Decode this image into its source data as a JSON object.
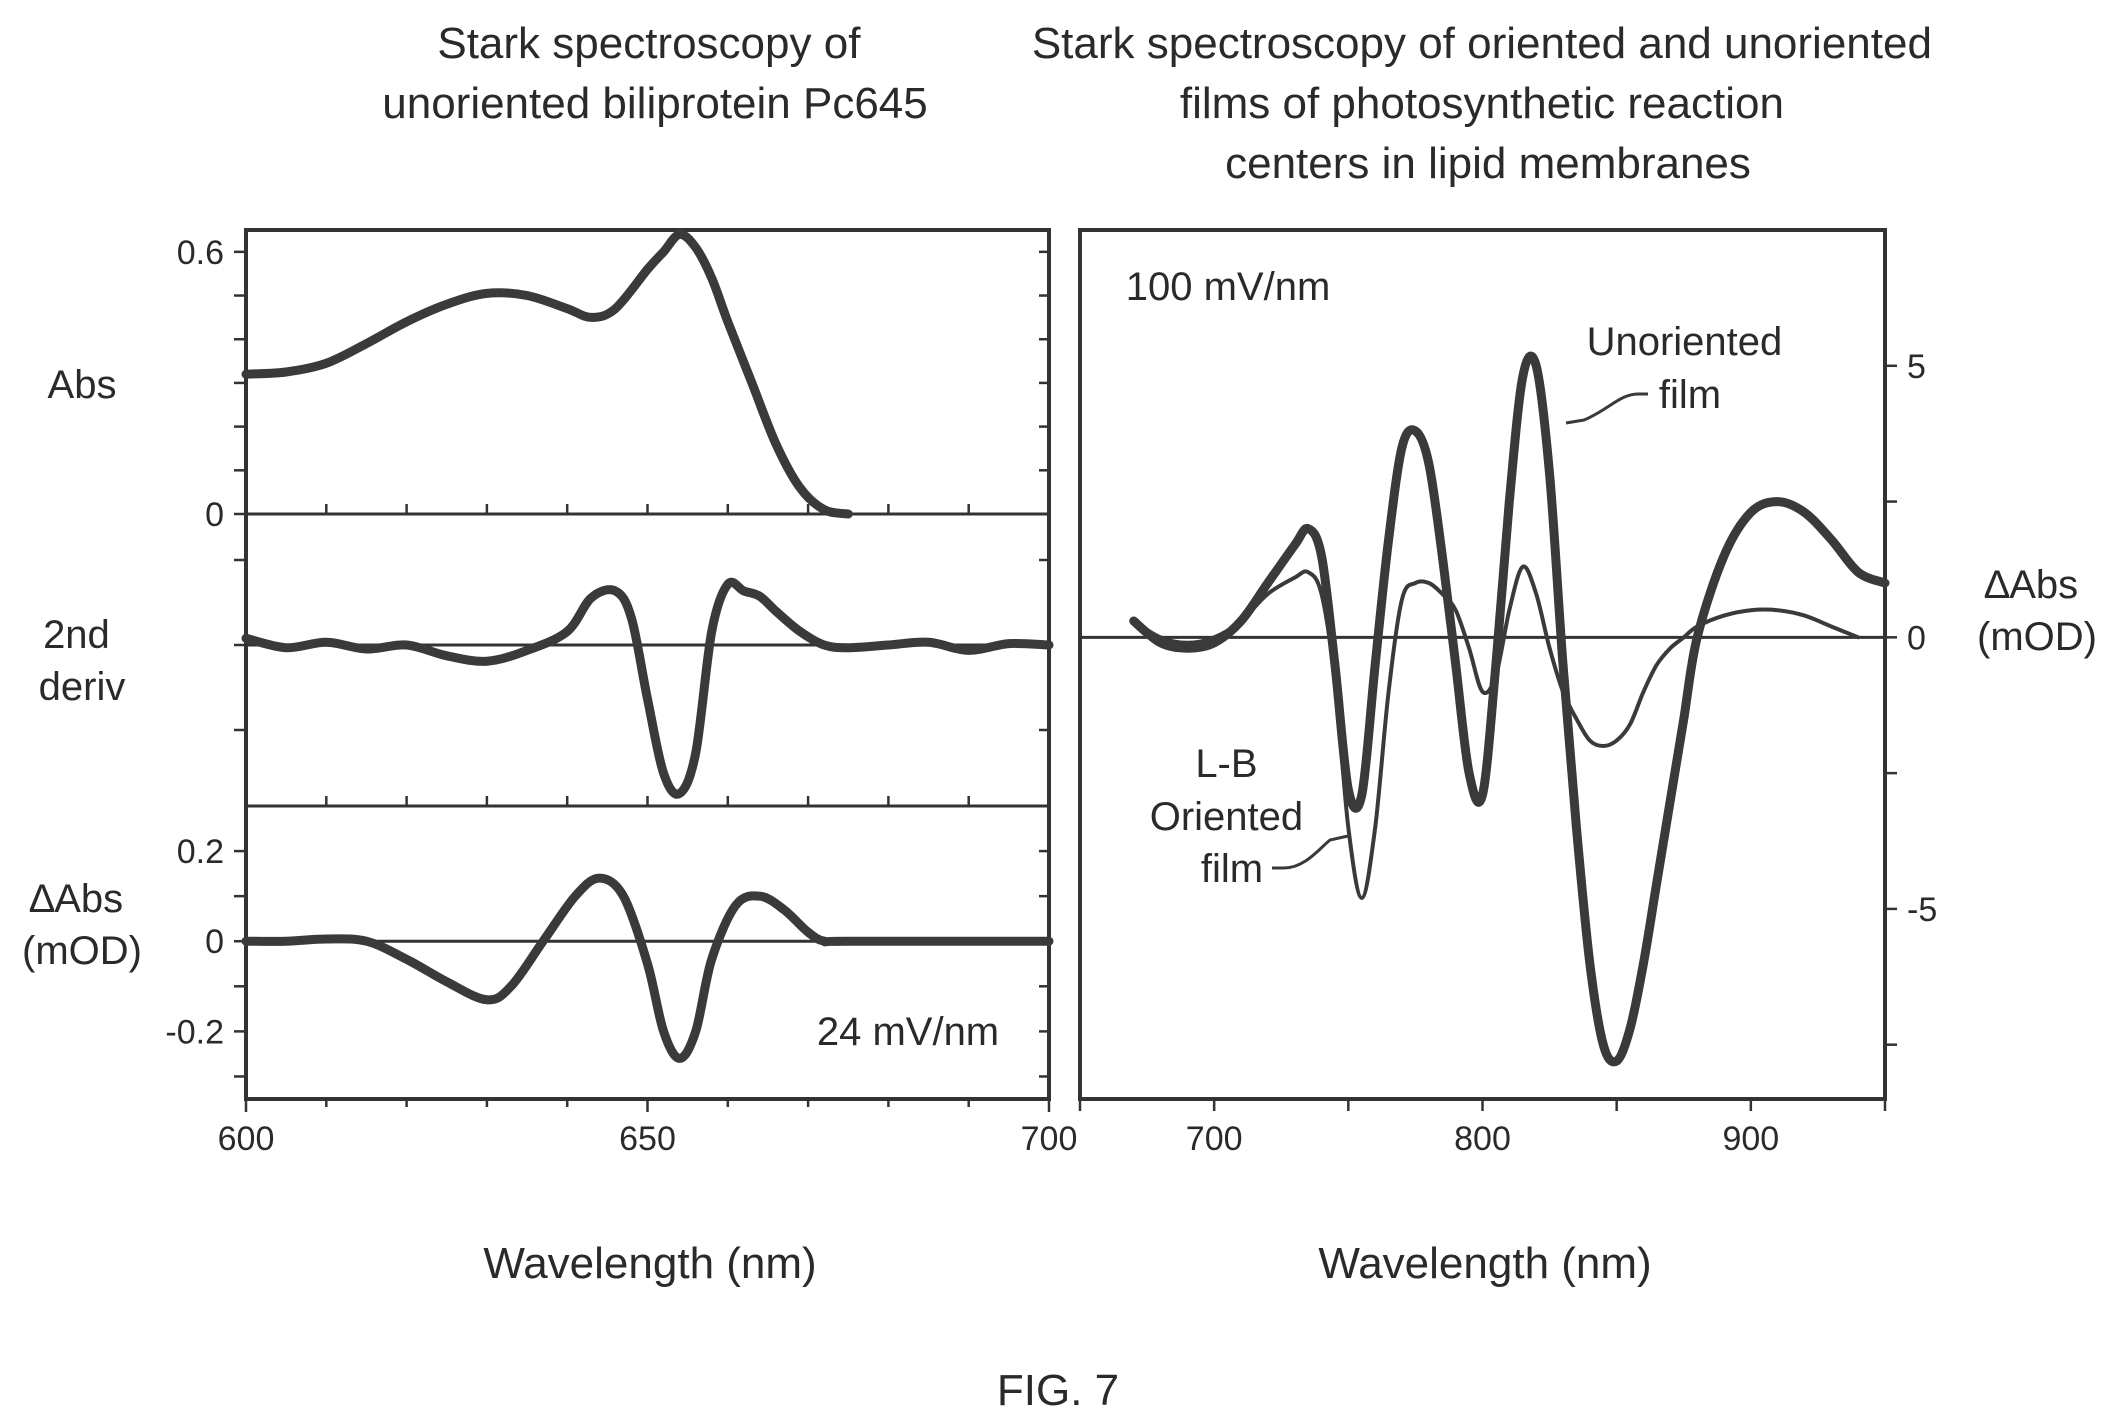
{
  "figure_label": "FIG. 7",
  "chart_data": [
    {
      "type": "line",
      "title": "Stark spectroscopy of unoriented biliprotein Pc645",
      "xlabel": "Wavelength (nm)",
      "xlim": [
        600,
        700
      ],
      "x_ticks": [
        "600",
        "650",
        "700"
      ],
      "annotation": "24 mV/nm",
      "panels": [
        {
          "label": "Abs",
          "ylim": [
            0,
            0.65
          ],
          "y_ticks": [
            "0.6",
            "0"
          ],
          "series": [
            {
              "x": [
                600,
                605,
                610,
                615,
                620,
                625,
                630,
                635,
                640,
                643,
                646,
                650,
                652,
                654,
                656,
                658,
                660,
                663,
                666,
                669,
                672,
                675
              ],
              "y": [
                0.32,
                0.325,
                0.345,
                0.39,
                0.44,
                0.48,
                0.505,
                0.5,
                0.47,
                0.45,
                0.47,
                0.56,
                0.6,
                0.64,
                0.61,
                0.54,
                0.44,
                0.3,
                0.16,
                0.06,
                0.01,
                0.0
              ]
            }
          ]
        },
        {
          "label_lines": [
            "2nd",
            "deriv"
          ],
          "series": [
            {
              "x": [
                600,
                605,
                610,
                615,
                620,
                625,
                630,
                635,
                640,
                643,
                646,
                648,
                650,
                652,
                654,
                656,
                658,
                660,
                662,
                664,
                666,
                669,
                672,
                675,
                680,
                685,
                690,
                695,
                700
              ],
              "y": [
                0.05,
                -0.02,
                0.02,
                -0.03,
                0.0,
                -0.08,
                -0.12,
                -0.04,
                0.1,
                0.35,
                0.4,
                0.2,
                -0.4,
                -0.95,
                -1.1,
                -0.8,
                0.1,
                0.45,
                0.4,
                0.36,
                0.25,
                0.1,
                0.0,
                -0.02,
                0.0,
                0.02,
                -0.04,
                0.01,
                0.0
              ]
            }
          ]
        },
        {
          "label_lines": [
            "∆Abs",
            "(mOD)"
          ],
          "ylim": [
            -0.35,
            0.3
          ],
          "y_ticks": [
            "0.2",
            "0",
            "-0.2"
          ],
          "series": [
            {
              "x": [
                600,
                605,
                610,
                615,
                620,
                625,
                630,
                633,
                637,
                641,
                644,
                647,
                650,
                652,
                654,
                656,
                658,
                661,
                664,
                667,
                670,
                672,
                675,
                700
              ],
              "y": [
                0.0,
                0.0,
                0.005,
                0.0,
                -0.04,
                -0.09,
                -0.13,
                -0.1,
                0.0,
                0.1,
                0.14,
                0.1,
                -0.05,
                -0.2,
                -0.26,
                -0.2,
                -0.04,
                0.08,
                0.1,
                0.07,
                0.02,
                0.0,
                0.0,
                0.0
              ]
            }
          ]
        }
      ]
    },
    {
      "type": "line",
      "title": "Stark spectroscopy of oriented and unoriented films of photosynthetic reaction centers in lipid membranes",
      "xlabel": "Wavelength (nm)",
      "ylabel": "∆Abs (mOD)",
      "xlim": [
        650,
        950
      ],
      "ylim": [
        -8.5,
        7.5
      ],
      "x_ticks": [
        "700",
        "800",
        "900"
      ],
      "x_extra_label": "700",
      "y_ticks": [
        "5",
        "0",
        "-5"
      ],
      "annotation": "100 mV/nm",
      "grid": false,
      "series": [
        {
          "name": "Unoriented film",
          "x": [
            670,
            680,
            690,
            700,
            710,
            720,
            730,
            735,
            740,
            745,
            750,
            755,
            760,
            765,
            770,
            775,
            780,
            785,
            790,
            795,
            800,
            805,
            810,
            815,
            820,
            825,
            830,
            835,
            840,
            845,
            850,
            855,
            860,
            865,
            870,
            875,
            880,
            890,
            900,
            910,
            920,
            930,
            940,
            950
          ],
          "y": [
            0.3,
            -0.1,
            -0.2,
            -0.1,
            0.3,
            1.0,
            1.7,
            2.0,
            1.5,
            -0.5,
            -2.8,
            -2.9,
            -0.5,
            1.8,
            3.5,
            3.8,
            3.2,
            1.5,
            -0.5,
            -2.5,
            -2.9,
            -0.5,
            2.5,
            4.8,
            5.0,
            3.0,
            -0.5,
            -3.5,
            -6.0,
            -7.5,
            -7.8,
            -7.2,
            -6.0,
            -4.5,
            -3.0,
            -1.5,
            0.0,
            1.5,
            2.3,
            2.5,
            2.3,
            1.8,
            1.2,
            1.0
          ]
        },
        {
          "name": "L-B Oriented film",
          "x": [
            670,
            680,
            690,
            700,
            710,
            720,
            730,
            735,
            740,
            745,
            750,
            755,
            760,
            765,
            770,
            775,
            780,
            785,
            790,
            795,
            800,
            805,
            810,
            815,
            820,
            825,
            830,
            835,
            840,
            845,
            850,
            855,
            860,
            865,
            870,
            875,
            880,
            890,
            900,
            910,
            920,
            930,
            940
          ],
          "y": [
            0.3,
            0.0,
            -0.1,
            0.0,
            0.3,
            0.8,
            1.1,
            1.2,
            0.8,
            -0.8,
            -3.5,
            -4.8,
            -3.5,
            -1.0,
            0.7,
            1.0,
            1.0,
            0.8,
            0.5,
            -0.2,
            -1.0,
            -0.7,
            0.5,
            1.3,
            0.8,
            -0.2,
            -1.0,
            -1.5,
            -1.9,
            -2.0,
            -1.9,
            -1.6,
            -1.0,
            -0.5,
            -0.2,
            0.0,
            0.2,
            0.4,
            0.5,
            0.5,
            0.4,
            0.2,
            0.0
          ]
        }
      ]
    }
  ]
}
